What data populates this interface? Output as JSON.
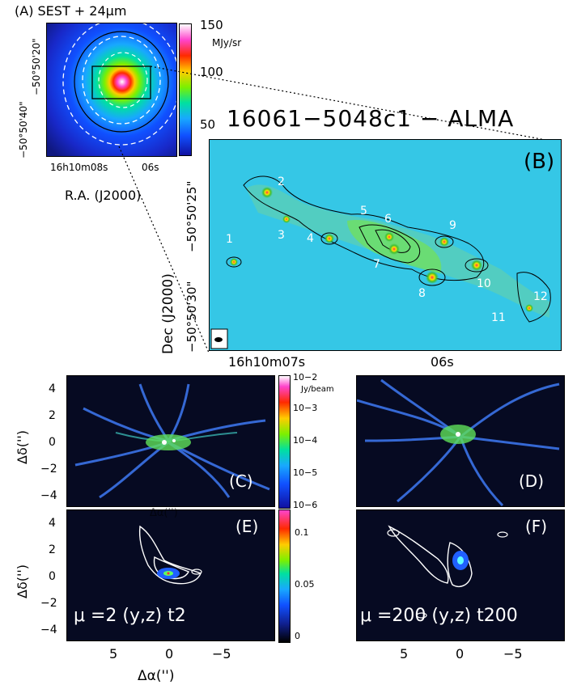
{
  "panelA": {
    "title": "(A) SEST + 24μm",
    "colorbar_ticks": [
      "150",
      "100",
      "50"
    ],
    "colorbar_unit": "MJy/sr",
    "y_ticks": [
      "−50°50'20\"",
      "−50°50'40\""
    ],
    "x_ticks": [
      "16h10m08s",
      "06s"
    ],
    "xlabel": "R.A. (J2000)"
  },
  "panelB": {
    "title": "16061−5048c1 − ALMA",
    "letter": "(B)",
    "ylabel": "Dec (J2000)",
    "y_ticks": [
      "−50°50'25\"",
      "−50°50'30\""
    ],
    "x_ticks": [
      "16h10m07s",
      "06s"
    ],
    "cores": [
      {
        "label": "1"
      },
      {
        "label": "2"
      },
      {
        "label": "3"
      },
      {
        "label": "4"
      },
      {
        "label": "5"
      },
      {
        "label": "6"
      },
      {
        "label": "7"
      },
      {
        "label": "8"
      },
      {
        "label": "9"
      },
      {
        "label": "10"
      },
      {
        "label": "11"
      },
      {
        "label": "12"
      }
    ]
  },
  "panelC": {
    "letter": "(C)",
    "colorbar_unit": "Jy/beam",
    "colorbar_ticks": [
      "10−2",
      "10−3",
      "10−4",
      "10−5",
      "10−6"
    ]
  },
  "panelD": {
    "letter": "(D)"
  },
  "panelE": {
    "letter": "(E)",
    "annotation": "μ =2  (y,z) t2",
    "colorbar_ticks": [
      "0.1",
      "0.05",
      "0"
    ],
    "overlap_label": "Δα('')"
  },
  "panelF": {
    "letter": "(F)",
    "annotation": "μ =200 (y,z) t200"
  },
  "sim_axes": {
    "y_ticks": [
      "4",
      "2",
      "0",
      "−2",
      "−4"
    ],
    "x_ticks": [
      "5",
      "0",
      "−5"
    ],
    "ylabel": "Δδ('')",
    "xlabel": "Δα('')"
  },
  "colors": {
    "field_cyan": "#35c7e6",
    "sim_background": "#060a22",
    "sim_filament": "#3b73e8"
  }
}
